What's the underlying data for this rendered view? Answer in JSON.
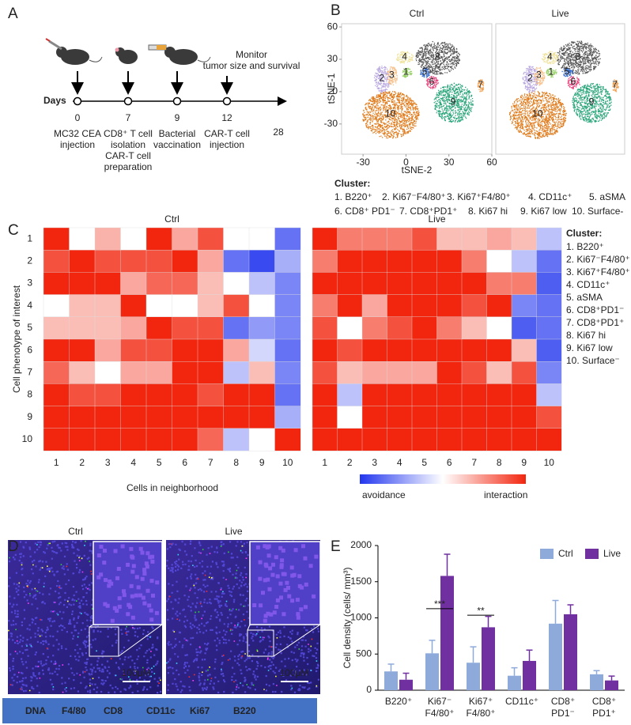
{
  "panel_labels": [
    "A",
    "B",
    "C",
    "D",
    "E"
  ],
  "timeline": {
    "axis_label": "Days",
    "days": [
      0,
      7,
      9,
      12,
      28
    ],
    "events": [
      [
        "MC32 CEA",
        "injection"
      ],
      [
        "CD8⁺ T cell",
        "isolation",
        "CAR-T cell",
        "preparation"
      ],
      [
        "Bacterial",
        "vaccination"
      ],
      [
        "CAR-T cell",
        "injection"
      ]
    ],
    "monitor": [
      "Monitor",
      "tumor size and survival"
    ]
  },
  "tsne": {
    "titles": [
      "Ctrl",
      "Live"
    ],
    "xlabel": "tSNE-2",
    "ylabel": "tSNE-1",
    "xlim": [
      -45,
      60
    ],
    "ylim": [
      -58,
      63
    ],
    "xticks": [
      -30,
      0,
      30,
      60
    ],
    "yticks": [
      -30,
      0,
      30,
      60
    ],
    "clusters": [
      {
        "label": "1",
        "color": "#9bd36b",
        "x": 0,
        "y": 18
      },
      {
        "label": "2",
        "color": "#b9a8e0",
        "x": -17,
        "y": 12
      },
      {
        "label": "3",
        "color": "#f5c08a",
        "x": -10,
        "y": 15
      },
      {
        "label": "4",
        "color": "#efe3a0",
        "x": -1,
        "y": 32
      },
      {
        "label": "5",
        "color": "#3a6fd0",
        "x": 13,
        "y": 18
      },
      {
        "label": "6",
        "color": "#e8457f",
        "x": 18,
        "y": 9
      },
      {
        "label": "7",
        "color": "#f0a050",
        "x": 52,
        "y": 6
      },
      {
        "label": "8",
        "color": "#555555",
        "x": 22,
        "y": 32
      },
      {
        "label": "9",
        "color": "#2aa57a",
        "x": 33,
        "y": -10
      },
      {
        "label": "10",
        "color": "#e07b1c",
        "x": -11,
        "y": -21
      }
    ],
    "legend_title": "Cluster:",
    "legend": [
      "1.  B220⁺",
      "2. Ki67⁻F4/80⁺",
      "3. Ki67⁺F4/80⁺",
      "4. CD11c⁺",
      "5. aSMA",
      "6. CD8⁺ PD1⁻",
      "7. CD8⁺PD1⁺",
      "8. Ki67 hi",
      "9. Ki67 low",
      "10. Surface-"
    ]
  },
  "chart_data": [
    {
      "type": "heatmap",
      "title": "Ctrl",
      "xlabel": "Cells in neighborhood",
      "ylabel": "Cell phenotype of interest",
      "x_categories": [
        "1",
        "2",
        "3",
        "4",
        "5",
        "6",
        "7",
        "8",
        "9",
        "10"
      ],
      "y_categories": [
        "1",
        "2",
        "3",
        "4",
        "5",
        "6",
        "7",
        "8",
        "9",
        "10"
      ],
      "values": [
        [
          1,
          0,
          0.35,
          0,
          1,
          0.4,
          0.8,
          0,
          0,
          -0.7
        ],
        [
          0.8,
          1,
          0.8,
          0.8,
          0.8,
          1,
          0.4,
          -0.7,
          -0.9,
          -0.4
        ],
        [
          1,
          1,
          1,
          0.4,
          0.7,
          0.7,
          0.3,
          0,
          -0.3,
          -0.6
        ],
        [
          0,
          0.3,
          0.3,
          1,
          0,
          0,
          0.3,
          0.8,
          0,
          -0.6
        ],
        [
          0.3,
          0.3,
          0.3,
          0.4,
          1,
          0.8,
          0.8,
          -0.7,
          -0.5,
          -0.6
        ],
        [
          1,
          1,
          0.4,
          0.8,
          0.8,
          1,
          1,
          0.4,
          -0.2,
          -0.7
        ],
        [
          0.7,
          0.3,
          0,
          0.4,
          0.4,
          1,
          1,
          -0.3,
          0.3,
          -0.6
        ],
        [
          1,
          0.8,
          0.8,
          1,
          1,
          1,
          0.8,
          1,
          1,
          -0.7
        ],
        [
          1,
          1,
          1,
          1,
          1,
          1,
          1,
          1,
          1,
          -0.4
        ],
        [
          1,
          1,
          1,
          1,
          1,
          1,
          0.7,
          -0.3,
          0,
          1
        ]
      ]
    },
    {
      "type": "heatmap",
      "title": "Live",
      "x_categories": [
        "1",
        "2",
        "3",
        "4",
        "5",
        "6",
        "7",
        "8",
        "9",
        "10"
      ],
      "values": [
        [
          1,
          0.6,
          0.6,
          0.6,
          0.8,
          0.3,
          0.3,
          0.4,
          0.3,
          -0.3
        ],
        [
          0.6,
          1,
          1,
          1,
          1,
          1,
          0.6,
          0,
          -0.3,
          -0.7
        ],
        [
          1,
          1,
          1,
          1,
          1,
          1,
          1,
          0.6,
          0.6,
          -0.8
        ],
        [
          0.6,
          1,
          0.4,
          1,
          1,
          1,
          0.8,
          1,
          -0.6,
          -0.7
        ],
        [
          0.8,
          0,
          0.6,
          0.8,
          1,
          0.6,
          0.3,
          0,
          -0.8,
          -0.7
        ],
        [
          1,
          0.8,
          1,
          1,
          1,
          1,
          1,
          1,
          0.3,
          -0.8
        ],
        [
          0.8,
          0.3,
          0.4,
          0.4,
          0.4,
          1,
          0.8,
          0.3,
          0.8,
          -0.6
        ],
        [
          1,
          -0.3,
          1,
          1,
          1,
          1,
          1,
          1,
          1,
          -0.3
        ],
        [
          1,
          0,
          1,
          1,
          1,
          1,
          1,
          1,
          1,
          0.8
        ],
        [
          1,
          1,
          1,
          1,
          1,
          1,
          1,
          1,
          1,
          1
        ]
      ]
    },
    {
      "type": "bar",
      "ylabel": "Cell density (cells/ mm³)",
      "categories": [
        [
          "B220⁺"
        ],
        [
          "Ki67⁻",
          "F4/80⁺"
        ],
        [
          "Ki67⁺",
          "F4/80⁺"
        ],
        [
          "CD11c⁺"
        ],
        [
          "CD8⁺",
          "PD1⁻"
        ],
        [
          "CD8⁺",
          "PD1⁺"
        ]
      ],
      "ylim": [
        0,
        2000
      ],
      "yticks": [
        0,
        500,
        1000,
        1500,
        2000
      ],
      "series": [
        {
          "name": "Ctrl",
          "color": "#8eaadb",
          "values": [
            260,
            510,
            380,
            200,
            920,
            220
          ],
          "errors": [
            100,
            180,
            220,
            110,
            320,
            50
          ]
        },
        {
          "name": "Live",
          "color": "#7030a0",
          "values": [
            145,
            1580,
            870,
            405,
            1050,
            135
          ],
          "errors": [
            90,
            300,
            150,
            150,
            130,
            60
          ]
        }
      ],
      "significance": [
        null,
        "***",
        "**",
        null,
        null,
        null
      ]
    }
  ],
  "heatmap_legend": {
    "title": "Cluster:",
    "items": [
      "1. B220⁺",
      "2. Ki67⁻F4/80⁺",
      "3. Ki67⁺F4/80⁺",
      "4. CD11c⁺",
      "5. aSMA",
      "6. CD8⁺PD1⁻",
      "7. CD8⁺PD1⁺",
      "8. Ki67 hi",
      "9. Ki67 low",
      "10. Surface⁻"
    ]
  },
  "colorbar": {
    "zlim": [
      -1,
      1
    ],
    "colors": [
      "#2236ee",
      "#ffffff",
      "#f2260f"
    ],
    "low_label": "avoidance",
    "high_label": "interaction"
  },
  "microscopy": {
    "titles": [
      "Ctrl",
      "Live"
    ],
    "scale_bars": [
      "100μM",
      "100μM"
    ],
    "channels": [
      {
        "name": "DNA",
        "color": "#2b3bff"
      },
      {
        "name": "F4/80",
        "color": "#ff2a2a"
      },
      {
        "name": "CD8",
        "color": "#35d8ff"
      },
      {
        "name": "CD11c",
        "color": "#ffff3a"
      },
      {
        "name": "Ki67",
        "color": "#ff3aff"
      },
      {
        "name": "B220",
        "color": "#2fcf3f"
      }
    ]
  }
}
